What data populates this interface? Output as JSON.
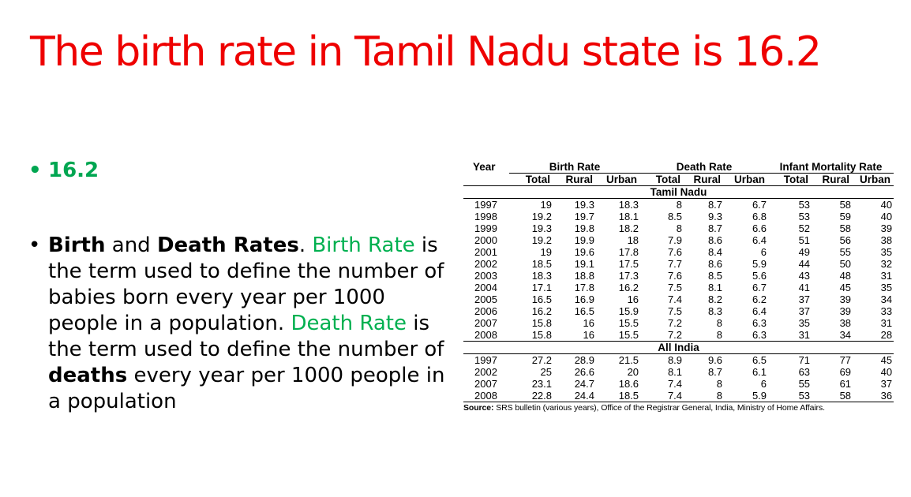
{
  "slide": {
    "title": "The birth rate in Tamil Nadu state is 16.2",
    "bullet1": "16.2",
    "bullet2": {
      "part1": "Birth",
      "part2": " and ",
      "part3": "Death Rates",
      "part4": ". ",
      "part5": "Birth Rate",
      "part6": " is the term used to define the number of babies born every year per 1000 people in a population. ",
      "part7": "Death Rate",
      "part8": " is the term used to define the number of ",
      "part9": "deaths",
      "part10": " every year per 1000 people in a population"
    },
    "colors": {
      "title": "#ee0000",
      "accent_green": "#00b050"
    }
  },
  "table": {
    "year_header": "Year",
    "group_headers": [
      "Birth Rate",
      "Death Rate",
      "Infant Mortality Rate"
    ],
    "sub_headers": [
      "Total",
      "Rural",
      "Urban",
      "Total",
      "Rural",
      "Urban",
      "Total",
      "Rural",
      "Urban"
    ],
    "section1": "Tamil Nadu",
    "section2": "All India",
    "tamil_nadu_rows": [
      [
        "1997",
        "19",
        "19.3",
        "18.3",
        "8",
        "8.7",
        "6.7",
        "53",
        "58",
        "40"
      ],
      [
        "1998",
        "19.2",
        "19.7",
        "18.1",
        "8.5",
        "9.3",
        "6.8",
        "53",
        "59",
        "40"
      ],
      [
        "1999",
        "19.3",
        "19.8",
        "18.2",
        "8",
        "8.7",
        "6.6",
        "52",
        "58",
        "39"
      ],
      [
        "2000",
        "19.2",
        "19.9",
        "18",
        "7.9",
        "8.6",
        "6.4",
        "51",
        "56",
        "38"
      ],
      [
        "2001",
        "19",
        "19.6",
        "17.8",
        "7.6",
        "8.4",
        "6",
        "49",
        "55",
        "35"
      ],
      [
        "2002",
        "18.5",
        "19.1",
        "17.5",
        "7.7",
        "8.6",
        "5.9",
        "44",
        "50",
        "32"
      ],
      [
        "2003",
        "18.3",
        "18.8",
        "17.3",
        "7.6",
        "8.5",
        "5.6",
        "43",
        "48",
        "31"
      ],
      [
        "2004",
        "17.1",
        "17.8",
        "16.2",
        "7.5",
        "8.1",
        "6.7",
        "41",
        "45",
        "35"
      ],
      [
        "2005",
        "16.5",
        "16.9",
        "16",
        "7.4",
        "8.2",
        "6.2",
        "37",
        "39",
        "34"
      ],
      [
        "2006",
        "16.2",
        "16.5",
        "15.9",
        "7.5",
        "8.3",
        "6.4",
        "37",
        "39",
        "33"
      ],
      [
        "2007",
        "15.8",
        "16",
        "15.5",
        "7.2",
        "8",
        "6.3",
        "35",
        "38",
        "31"
      ],
      [
        "2008",
        "15.8",
        "16",
        "15.5",
        "7.2",
        "8",
        "6.3",
        "31",
        "34",
        "28"
      ]
    ],
    "all_india_rows": [
      [
        "1997",
        "27.2",
        "28.9",
        "21.5",
        "8.9",
        "9.6",
        "6.5",
        "71",
        "77",
        "45"
      ],
      [
        "2002",
        "25",
        "26.6",
        "20",
        "8.1",
        "8.7",
        "6.1",
        "63",
        "69",
        "40"
      ],
      [
        "2007",
        "23.1",
        "24.7",
        "18.6",
        "7.4",
        "8",
        "6",
        "55",
        "61",
        "37"
      ],
      [
        "2008",
        "22.8",
        "24.4",
        "18.5",
        "7.4",
        "8",
        "5.9",
        "53",
        "58",
        "36"
      ]
    ],
    "source_label": "Source:",
    "source_text": " SRS bulletin (various years), Office of the Registrar General, India, Ministry of Home Affairs."
  }
}
